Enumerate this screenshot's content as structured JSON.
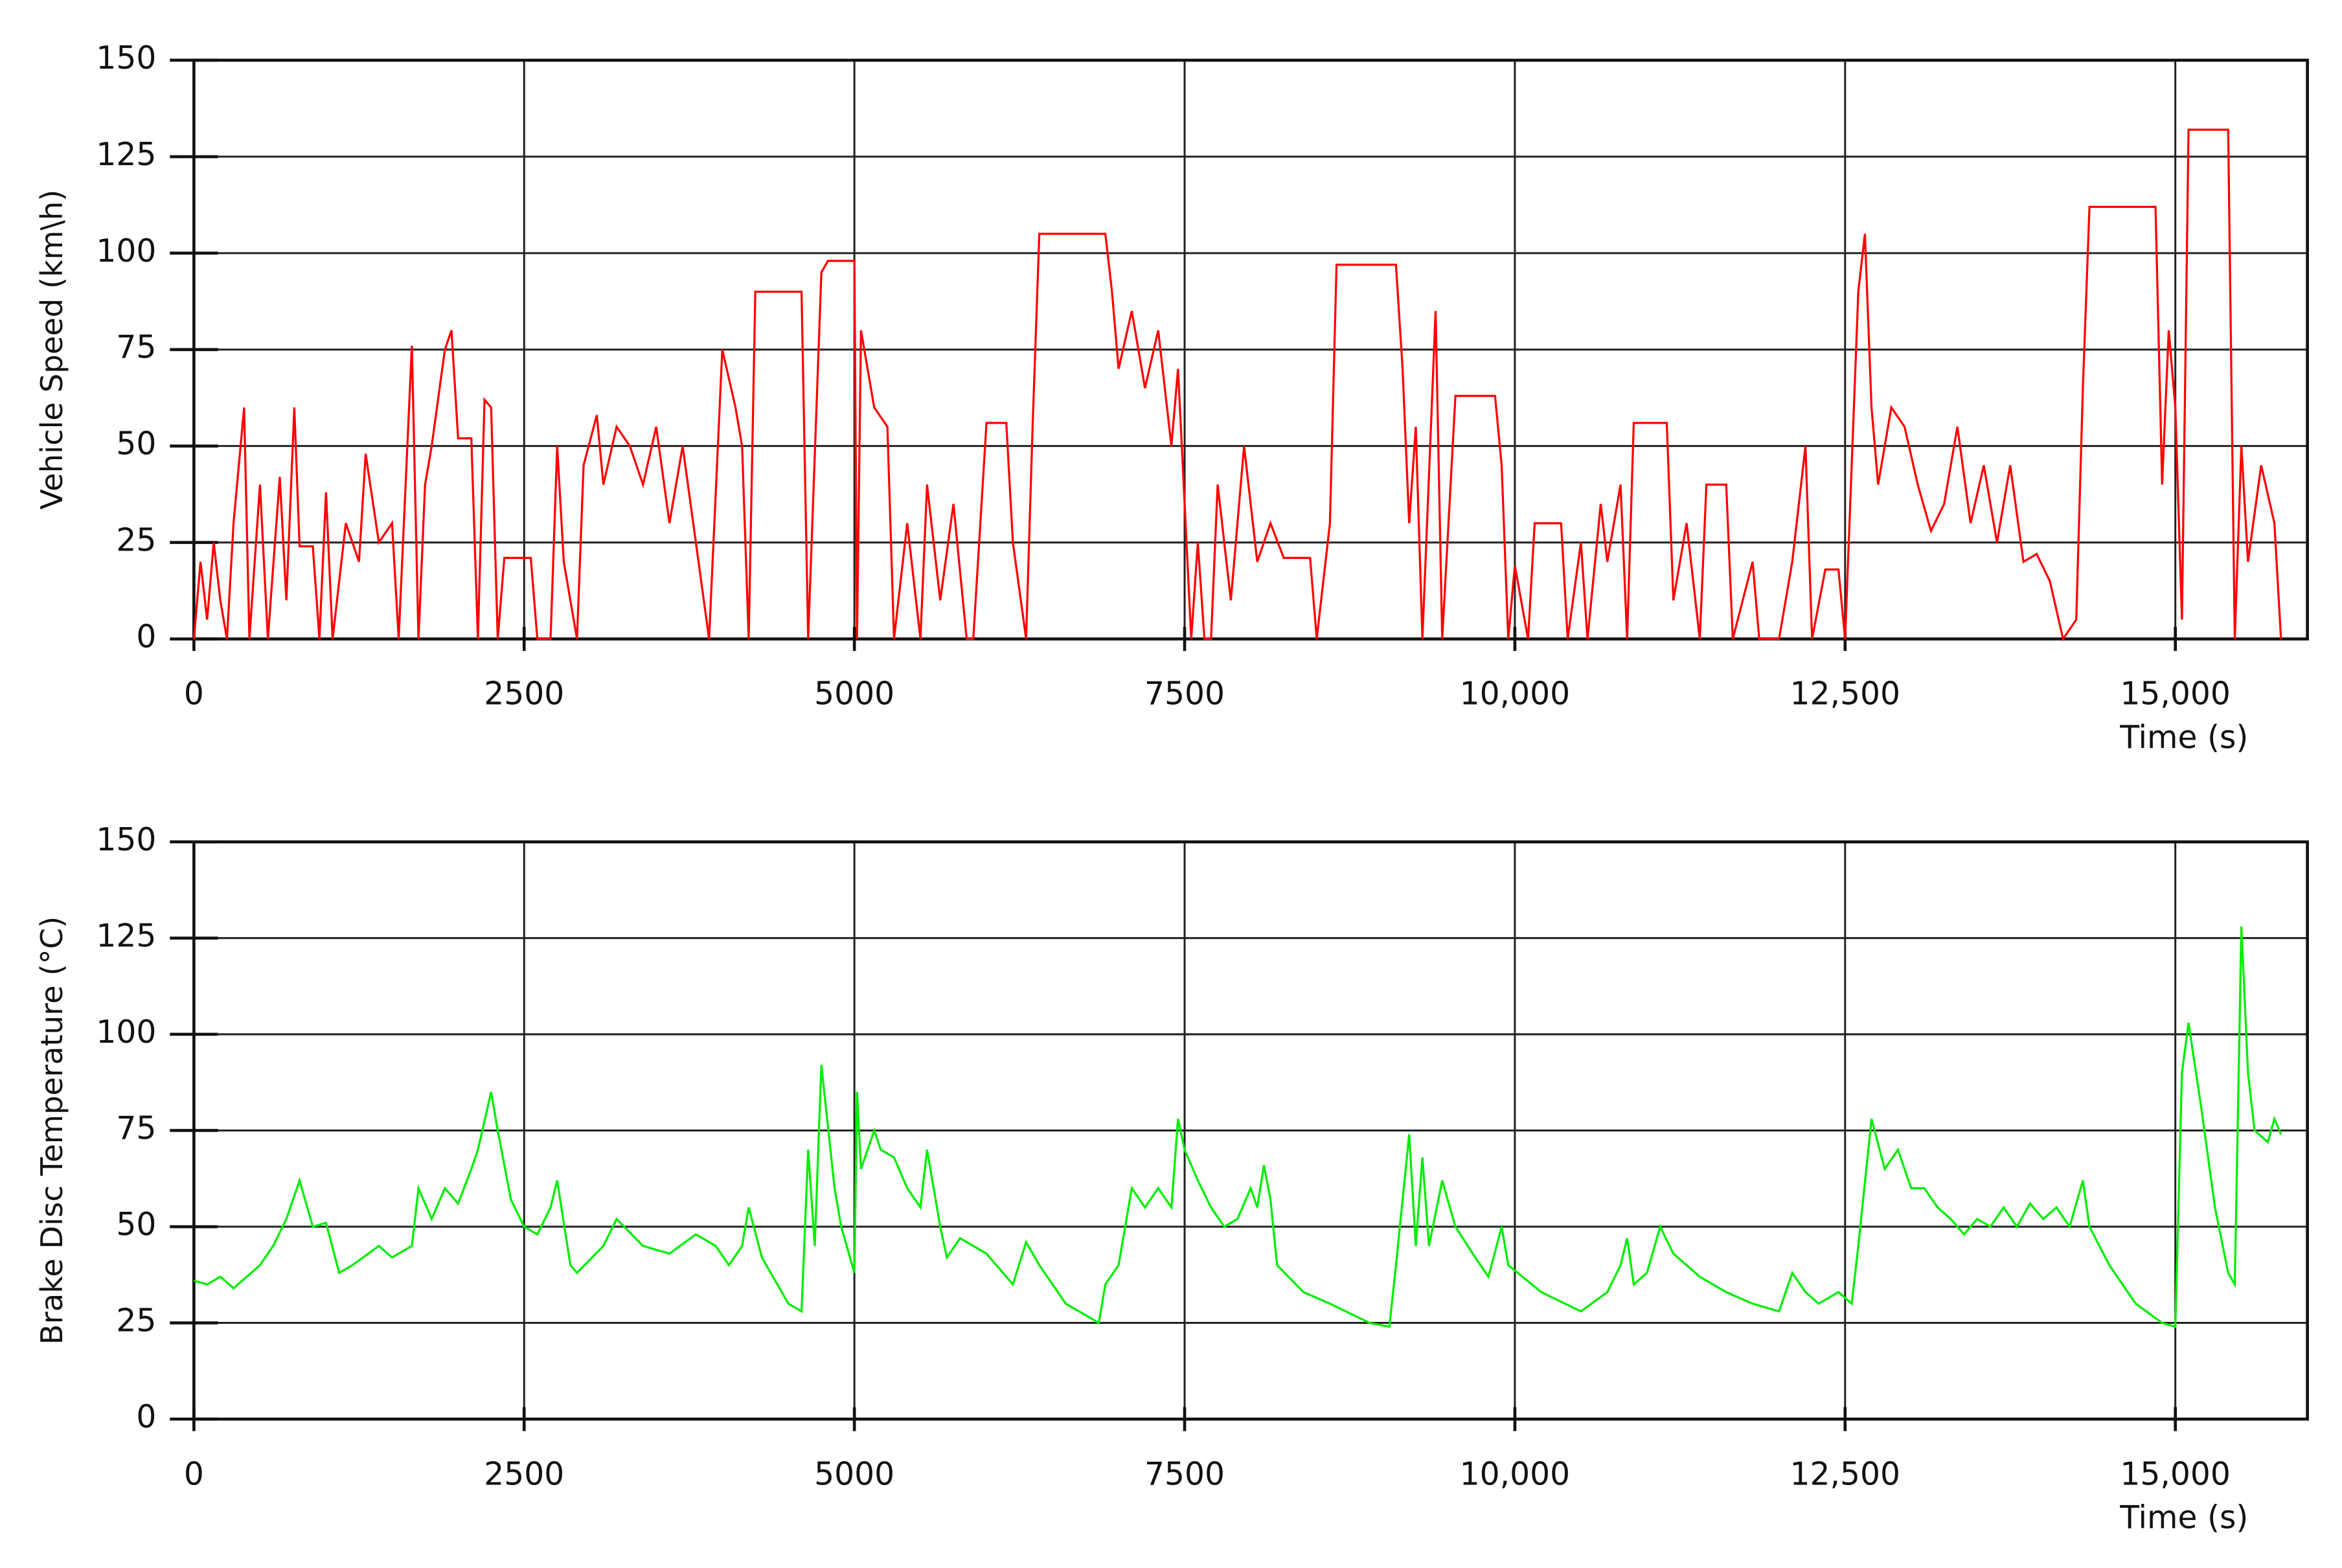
{
  "chart_data": [
    {
      "type": "line",
      "ylabel": "Vehicle Speed (km\\h)",
      "xlabel": "Time (s)",
      "color": "#ff0000",
      "xlim": [
        0,
        16000
      ],
      "ylim": [
        0,
        150
      ],
      "xticks": [
        0,
        2500,
        5000,
        7500,
        {
          "value": 10000,
          "label": "10,000"
        },
        {
          "value": 12500,
          "label": "12,500"
        },
        {
          "value": 15000,
          "label": "15,000"
        }
      ],
      "yticks": [
        0,
        25,
        50,
        75,
        100,
        125,
        150
      ],
      "grid": true,
      "x": [
        0,
        50,
        100,
        150,
        200,
        250,
        300,
        380,
        420,
        500,
        560,
        650,
        700,
        760,
        800,
        900,
        950,
        1000,
        1050,
        1150,
        1250,
        1300,
        1400,
        1500,
        1550,
        1650,
        1700,
        1750,
        1800,
        1900,
        1950,
        2000,
        2100,
        2150,
        2200,
        2250,
        2300,
        2350,
        2550,
        2600,
        2700,
        2750,
        2800,
        2900,
        2950,
        3050,
        3100,
        3200,
        3300,
        3400,
        3500,
        3600,
        3700,
        3800,
        3900,
        4000,
        4100,
        4150,
        4200,
        4250,
        4600,
        4650,
        4750,
        4800,
        5000,
        5020,
        5050,
        5150,
        5250,
        5300,
        5400,
        5500,
        5550,
        5650,
        5750,
        5850,
        5900,
        6000,
        6150,
        6200,
        6300,
        6350,
        6400,
        6900,
        6950,
        7000,
        7100,
        7200,
        7300,
        7400,
        7450,
        7550,
        7600,
        7650,
        7700,
        7750,
        7850,
        7950,
        8050,
        8150,
        8250,
        8450,
        8500,
        8600,
        8650,
        9100,
        9150,
        9200,
        9250,
        9300,
        9400,
        9450,
        9550,
        9850,
        9900,
        9950,
        10000,
        10100,
        10150,
        10350,
        10400,
        10500,
        10550,
        10650,
        10700,
        10800,
        10850,
        10900,
        11150,
        11200,
        11300,
        11400,
        11450,
        11600,
        11650,
        11800,
        11850,
        12000,
        12100,
        12200,
        12250,
        12350,
        12450,
        12500,
        12600,
        12650,
        12700,
        12750,
        12850,
        12950,
        13050,
        13150,
        13250,
        13350,
        13450,
        13550,
        13650,
        13750,
        13850,
        13950,
        14050,
        14150,
        14250,
        14300,
        14350,
        14850,
        14900,
        14950,
        15000,
        15050,
        15100,
        15400,
        15450,
        15500,
        15550,
        15650,
        15750,
        15800
      ],
      "values": [
        0,
        20,
        5,
        25,
        10,
        0,
        30,
        60,
        0,
        40,
        0,
        42,
        10,
        60,
        24,
        24,
        0,
        38,
        0,
        30,
        20,
        48,
        25,
        30,
        0,
        76,
        0,
        40,
        50,
        75,
        80,
        52,
        52,
        0,
        62,
        60,
        0,
        21,
        21,
        0,
        0,
        50,
        20,
        0,
        45,
        58,
        40,
        55,
        50,
        40,
        55,
        30,
        50,
        25,
        0,
        75,
        60,
        50,
        0,
        90,
        90,
        0,
        95,
        98,
        98,
        0,
        80,
        60,
        55,
        0,
        30,
        0,
        40,
        10,
        35,
        0,
        0,
        56,
        56,
        25,
        0,
        56,
        105,
        105,
        90,
        70,
        85,
        65,
        80,
        50,
        70,
        0,
        25,
        0,
        0,
        40,
        10,
        50,
        20,
        30,
        21,
        21,
        0,
        30,
        97,
        97,
        70,
        30,
        55,
        0,
        85,
        0,
        63,
        63,
        45,
        0,
        19,
        0,
        30,
        30,
        0,
        25,
        0,
        35,
        20,
        40,
        0,
        56,
        56,
        10,
        30,
        0,
        40,
        40,
        0,
        20,
        0,
        0,
        20,
        50,
        0,
        18,
        18,
        0,
        90,
        105,
        60,
        40,
        60,
        55,
        40,
        28,
        35,
        55,
        30,
        45,
        25,
        45,
        20,
        22,
        15,
        0,
        5,
        65,
        112,
        112,
        40,
        80,
        60,
        5,
        132,
        132,
        0,
        50,
        20,
        45,
        30,
        0
      ]
    },
    {
      "type": "line",
      "ylabel": "Brake Disc Temperature (°C)",
      "xlabel": "Time (s)",
      "color": "#00ee00",
      "xlim": [
        0,
        16000
      ],
      "ylim": [
        0,
        150
      ],
      "xticks": [
        0,
        2500,
        5000,
        7500,
        {
          "value": 10000,
          "label": "10,000"
        },
        {
          "value": 12500,
          "label": "12,500"
        },
        {
          "value": 15000,
          "label": "15,000"
        }
      ],
      "yticks": [
        0,
        25,
        50,
        75,
        100,
        125,
        150
      ],
      "grid": true,
      "x": [
        0,
        100,
        200,
        300,
        500,
        600,
        700,
        800,
        900,
        1000,
        1100,
        1200,
        1400,
        1500,
        1600,
        1650,
        1700,
        1800,
        1900,
        2000,
        2100,
        2150,
        2250,
        2300,
        2400,
        2500,
        2600,
        2700,
        2750,
        2850,
        2900,
        3100,
        3200,
        3400,
        3600,
        3800,
        3950,
        4050,
        4150,
        4200,
        4300,
        4500,
        4600,
        4650,
        4700,
        4750,
        4850,
        4900,
        5000,
        5020,
        5050,
        5150,
        5200,
        5300,
        5400,
        5500,
        5550,
        5650,
        5700,
        5800,
        6000,
        6200,
        6300,
        6400,
        6600,
        6850,
        6900,
        7000,
        7100,
        7200,
        7300,
        7400,
        7450,
        7500,
        7600,
        7700,
        7800,
        7900,
        8000,
        8050,
        8100,
        8150,
        8200,
        8400,
        8600,
        8900,
        9050,
        9100,
        9200,
        9250,
        9300,
        9350,
        9450,
        9550,
        9700,
        9800,
        9900,
        9950,
        10200,
        10500,
        10700,
        10800,
        10850,
        10900,
        11000,
        11100,
        11200,
        11400,
        11600,
        11800,
        12000,
        12100,
        12200,
        12300,
        12450,
        12550,
        12600,
        12700,
        12800,
        12900,
        13000,
        13100,
        13200,
        13300,
        13400,
        13500,
        13600,
        13700,
        13800,
        13900,
        14000,
        14100,
        14200,
        14300,
        14350,
        14500,
        14700,
        14900,
        15000,
        15050,
        15100,
        15200,
        15300,
        15400,
        15450,
        15500,
        15550,
        15600,
        15700,
        15750,
        15800
      ],
      "values": [
        36,
        35,
        37,
        34,
        40,
        45,
        52,
        62,
        50,
        51,
        38,
        40,
        45,
        42,
        44,
        45,
        60,
        52,
        60,
        56,
        65,
        70,
        85,
        75,
        57,
        50,
        48,
        55,
        62,
        40,
        38,
        45,
        52,
        45,
        43,
        48,
        45,
        40,
        45,
        55,
        42,
        30,
        28,
        70,
        45,
        92,
        60,
        50,
        38,
        85,
        65,
        75,
        70,
        68,
        60,
        55,
        70,
        50,
        42,
        47,
        43,
        35,
        46,
        40,
        30,
        25,
        35,
        40,
        60,
        55,
        60,
        55,
        78,
        70,
        62,
        55,
        50,
        52,
        60,
        55,
        66,
        57,
        40,
        33,
        30,
        25,
        24,
        40,
        74,
        45,
        68,
        45,
        62,
        50,
        42,
        37,
        50,
        40,
        33,
        28,
        33,
        40,
        47,
        35,
        38,
        50,
        43,
        37,
        33,
        30,
        28,
        38,
        33,
        30,
        33,
        30,
        45,
        78,
        65,
        70,
        60,
        60,
        55,
        52,
        48,
        52,
        50,
        55,
        50,
        56,
        52,
        55,
        50,
        62,
        50,
        40,
        30,
        25,
        24,
        90,
        103,
        80,
        55,
        38,
        35,
        128,
        90,
        75,
        72,
        78,
        74
      ]
    }
  ]
}
